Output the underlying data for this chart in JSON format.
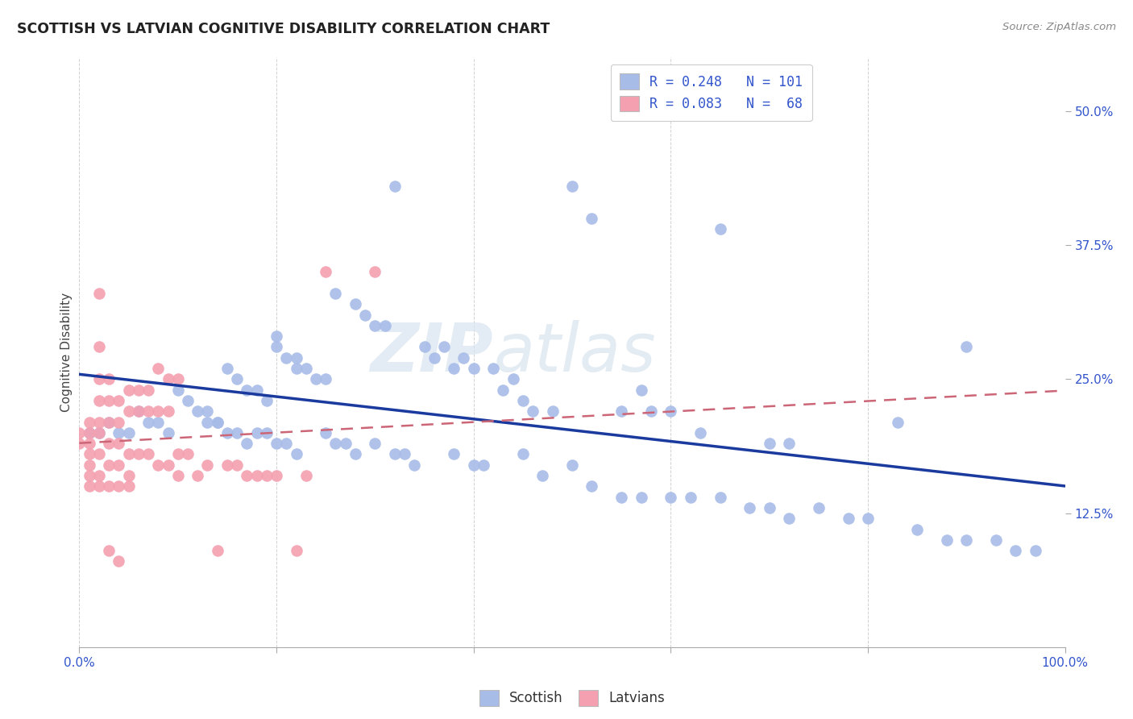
{
  "title": "SCOTTISH VS LATVIAN COGNITIVE DISABILITY CORRELATION CHART",
  "source": "Source: ZipAtlas.com",
  "ylabel": "Cognitive Disability",
  "ytick_labels": [
    "12.5%",
    "25.0%",
    "37.5%",
    "50.0%"
  ],
  "ytick_values": [
    0.125,
    0.25,
    0.375,
    0.5
  ],
  "xlim": [
    0.0,
    1.0
  ],
  "ylim": [
    0.0,
    0.55
  ],
  "legend_R_scottish": "0.248",
  "legend_N_scottish": "101",
  "legend_R_latvian": "0.083",
  "legend_N_latvian": "68",
  "scottish_color": "#a8bce8",
  "latvian_color": "#f4a0b0",
  "line_scottish_color": "#1a3a9e",
  "line_latvian_color": "#cc6677",
  "watermark_zip": "ZIP",
  "watermark_atlas": "atlas",
  "scottish_x": [
    0.32,
    0.5,
    0.52,
    0.26,
    0.28,
    0.29,
    0.3,
    0.31,
    0.2,
    0.2,
    0.21,
    0.22,
    0.22,
    0.23,
    0.24,
    0.25,
    0.15,
    0.16,
    0.17,
    0.18,
    0.19,
    0.1,
    0.11,
    0.12,
    0.13,
    0.14,
    0.06,
    0.07,
    0.08,
    0.09,
    0.03,
    0.04,
    0.05,
    0.01,
    0.02,
    0.35,
    0.36,
    0.37,
    0.38,
    0.39,
    0.4,
    0.42,
    0.43,
    0.44,
    0.45,
    0.46,
    0.48,
    0.55,
    0.57,
    0.58,
    0.6,
    0.63,
    0.65,
    0.7,
    0.72,
    0.83,
    0.9,
    0.25,
    0.26,
    0.27,
    0.28,
    0.3,
    0.32,
    0.33,
    0.34,
    0.38,
    0.4,
    0.41,
    0.45,
    0.47,
    0.5,
    0.52,
    0.55,
    0.57,
    0.6,
    0.62,
    0.65,
    0.68,
    0.7,
    0.72,
    0.75,
    0.78,
    0.8,
    0.85,
    0.88,
    0.9,
    0.93,
    0.95,
    0.97,
    0.18,
    0.19,
    0.2,
    0.21,
    0.22,
    0.13,
    0.14,
    0.15,
    0.16,
    0.17
  ],
  "scottish_y": [
    0.43,
    0.43,
    0.4,
    0.33,
    0.32,
    0.31,
    0.3,
    0.3,
    0.29,
    0.28,
    0.27,
    0.27,
    0.26,
    0.26,
    0.25,
    0.25,
    0.26,
    0.25,
    0.24,
    0.24,
    0.23,
    0.24,
    0.23,
    0.22,
    0.22,
    0.21,
    0.22,
    0.21,
    0.21,
    0.2,
    0.21,
    0.2,
    0.2,
    0.2,
    0.2,
    0.28,
    0.27,
    0.28,
    0.26,
    0.27,
    0.26,
    0.26,
    0.24,
    0.25,
    0.23,
    0.22,
    0.22,
    0.22,
    0.24,
    0.22,
    0.22,
    0.2,
    0.39,
    0.19,
    0.19,
    0.21,
    0.28,
    0.2,
    0.19,
    0.19,
    0.18,
    0.19,
    0.18,
    0.18,
    0.17,
    0.18,
    0.17,
    0.17,
    0.18,
    0.16,
    0.17,
    0.15,
    0.14,
    0.14,
    0.14,
    0.14,
    0.14,
    0.13,
    0.13,
    0.12,
    0.13,
    0.12,
    0.12,
    0.11,
    0.1,
    0.1,
    0.1,
    0.09,
    0.09,
    0.2,
    0.2,
    0.19,
    0.19,
    0.18,
    0.21,
    0.21,
    0.2,
    0.2,
    0.19
  ],
  "latvian_x": [
    0.0,
    0.0,
    0.01,
    0.01,
    0.01,
    0.01,
    0.01,
    0.01,
    0.02,
    0.02,
    0.02,
    0.02,
    0.02,
    0.02,
    0.02,
    0.02,
    0.03,
    0.03,
    0.03,
    0.03,
    0.03,
    0.03,
    0.04,
    0.04,
    0.04,
    0.04,
    0.04,
    0.05,
    0.05,
    0.05,
    0.05,
    0.06,
    0.06,
    0.06,
    0.07,
    0.07,
    0.07,
    0.08,
    0.08,
    0.09,
    0.09,
    0.1,
    0.1,
    0.11,
    0.12,
    0.13,
    0.14,
    0.15,
    0.16,
    0.17,
    0.18,
    0.19,
    0.2,
    0.22,
    0.23,
    0.08,
    0.09,
    0.1,
    0.25,
    0.3,
    0.01,
    0.02,
    0.03,
    0.04,
    0.05
  ],
  "latvian_y": [
    0.2,
    0.19,
    0.21,
    0.2,
    0.19,
    0.18,
    0.17,
    0.16,
    0.33,
    0.28,
    0.25,
    0.23,
    0.21,
    0.2,
    0.18,
    0.16,
    0.25,
    0.23,
    0.21,
    0.19,
    0.17,
    0.09,
    0.23,
    0.21,
    0.19,
    0.17,
    0.08,
    0.24,
    0.22,
    0.18,
    0.16,
    0.24,
    0.22,
    0.18,
    0.24,
    0.22,
    0.18,
    0.22,
    0.17,
    0.22,
    0.17,
    0.18,
    0.16,
    0.18,
    0.16,
    0.17,
    0.09,
    0.17,
    0.17,
    0.16,
    0.16,
    0.16,
    0.16,
    0.09,
    0.16,
    0.26,
    0.25,
    0.25,
    0.35,
    0.35,
    0.15,
    0.15,
    0.15,
    0.15,
    0.15
  ]
}
